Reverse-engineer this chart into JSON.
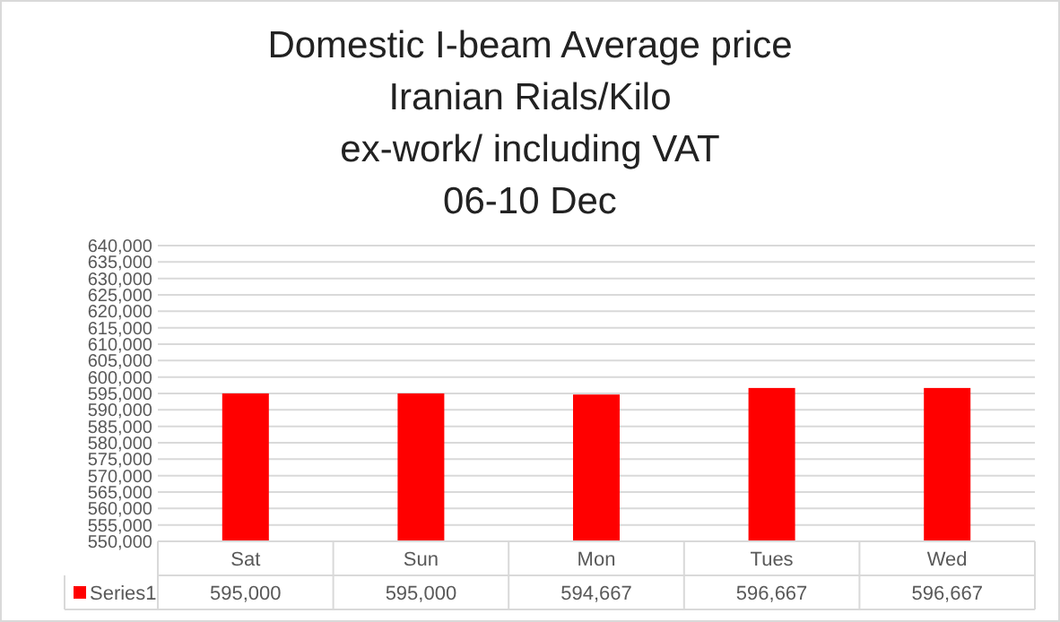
{
  "chart_data": {
    "type": "bar",
    "title": "Domestic I-beam Average price\nIranian Rials/Kilo\nex-work/ including VAT\n06-10 Dec",
    "categories": [
      "Sat",
      "Sun",
      "Mon",
      "Tues",
      "Wed"
    ],
    "series": [
      {
        "name": "Series1",
        "color": "#ff0000",
        "values": [
          595000,
          595000,
          594667,
          596667,
          596667
        ],
        "value_labels": [
          "595,000",
          "595,000",
          "594,667",
          "596,667",
          "596,667"
        ]
      }
    ],
    "ylim": [
      550000,
      640000
    ],
    "yticks": [
      {
        "value": 550000,
        "label": "550,000"
      },
      {
        "value": 555000,
        "label": "555,000"
      },
      {
        "value": 560000,
        "label": "560,000"
      },
      {
        "value": 565000,
        "label": "565,000"
      },
      {
        "value": 570000,
        "label": "570,000"
      },
      {
        "value": 575000,
        "label": "575,000"
      },
      {
        "value": 580000,
        "label": "580,000"
      },
      {
        "value": 585000,
        "label": "585,000"
      },
      {
        "value": 590000,
        "label": "590,000"
      },
      {
        "value": 595000,
        "label": "595,000"
      },
      {
        "value": 600000,
        "label": "600,000"
      },
      {
        "value": 605000,
        "label": "605,000"
      },
      {
        "value": 610000,
        "label": "610,000"
      },
      {
        "value": 615000,
        "label": "615,000"
      },
      {
        "value": 620000,
        "label": "620,000"
      },
      {
        "value": 625000,
        "label": "625,000"
      },
      {
        "value": 630000,
        "label": "630,000"
      },
      {
        "value": 635000,
        "label": "635,000"
      },
      {
        "value": 640000,
        "label": "640,000"
      }
    ],
    "grid": "y",
    "legend": "bottom"
  }
}
